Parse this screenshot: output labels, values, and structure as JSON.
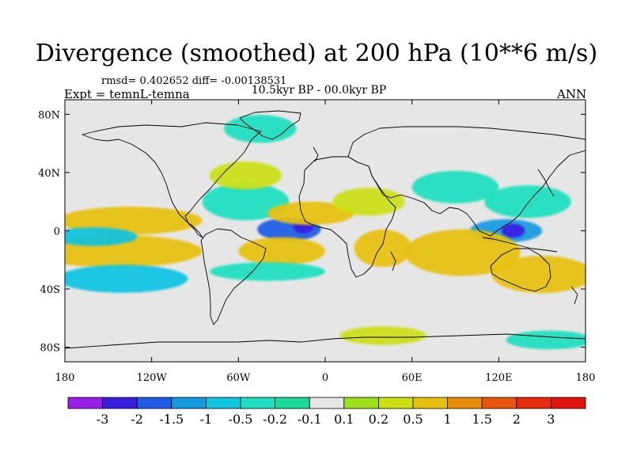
{
  "header": {
    "title": "Divergence (smoothed) at 200 hPa (10**6 m/s)",
    "stats": "rmsd= 0.402652 diff= -0.00138531",
    "expt": "Expt = temnL-temna",
    "period": "10.5kyr BP - 00.0kyr BP",
    "season": "ANN"
  },
  "map": {
    "lon_labels": [
      "180",
      "120W",
      "60W",
      "0",
      "60E",
      "120E",
      "180"
    ],
    "lon_values": [
      -180,
      -120,
      -60,
      0,
      60,
      120,
      180
    ],
    "lat_labels": [
      "80N",
      "40N",
      "0",
      "40S",
      "80S"
    ],
    "lat_values": [
      80,
      40,
      0,
      -40,
      -80
    ],
    "lat_range": [
      -90,
      90
    ],
    "lon_range": [
      -180,
      180
    ],
    "background_color": "#e6e6e6"
  },
  "colorbar": {
    "labels": [
      "-3",
      "-2",
      "-1.5",
      "-1",
      "-0.5",
      "-0.2",
      "-0.1",
      "0.1",
      "0.2",
      "0.5",
      "1",
      "1.5",
      "2",
      "3"
    ],
    "colors": [
      "#9a1ee8",
      "#3a1ee0",
      "#1f5ce6",
      "#159ae0",
      "#10c4e2",
      "#1ee0c0",
      "#1ed99a",
      "#e6e6e6",
      "#9be01a",
      "#cde014",
      "#e8c10e",
      "#e88c0c",
      "#e8560c",
      "#e82a0c",
      "#e0140c"
    ]
  },
  "chart_data": {
    "type": "heatmap",
    "title": "Divergence (smoothed) at 200 hPa (10**6 m/s)",
    "xlabel": "",
    "ylabel": "",
    "x_ticks": [
      "180",
      "120W",
      "60W",
      "0",
      "60E",
      "120E",
      "180"
    ],
    "y_ticks": [
      "80N",
      "40N",
      "0",
      "40S",
      "80S"
    ],
    "levels": [
      -3,
      -2,
      -1.5,
      -1,
      -0.5,
      -0.2,
      -0.1,
      0.1,
      0.2,
      0.5,
      1,
      1.5,
      2,
      3
    ],
    "features": [
      {
        "lon": -135,
        "lat": 7,
        "w": 50,
        "h": 6,
        "value": 0.7
      },
      {
        "lon": -145,
        "lat": -14,
        "w": 60,
        "h": 7,
        "value": 0.6
      },
      {
        "lon": -160,
        "lat": -4,
        "w": 30,
        "h": 4,
        "value": -0.7
      },
      {
        "lon": -140,
        "lat": -33,
        "w": 45,
        "h": 6,
        "value": -0.6
      },
      {
        "lon": -25,
        "lat": 1,
        "w": 22,
        "h": 5,
        "value": -1.6
      },
      {
        "lon": -15,
        "lat": 3,
        "w": 7,
        "h": 3,
        "value": -3
      },
      {
        "lon": -55,
        "lat": 20,
        "w": 30,
        "h": 8,
        "value": -0.4
      },
      {
        "lon": -55,
        "lat": 38,
        "w": 25,
        "h": 6,
        "value": 0.4
      },
      {
        "lon": -10,
        "lat": 12,
        "w": 30,
        "h": 5,
        "value": 0.7
      },
      {
        "lon": -30,
        "lat": -14,
        "w": 30,
        "h": 6,
        "value": 0.7
      },
      {
        "lon": -40,
        "lat": -28,
        "w": 40,
        "h": 4,
        "value": -0.3
      },
      {
        "lon": 40,
        "lat": -12,
        "w": 20,
        "h": 8,
        "value": 0.6
      },
      {
        "lon": 30,
        "lat": 20,
        "w": 25,
        "h": 6,
        "value": 0.3
      },
      {
        "lon": 90,
        "lat": 30,
        "w": 30,
        "h": 7,
        "value": -0.5
      },
      {
        "lon": 125,
        "lat": 0,
        "w": 25,
        "h": 5,
        "value": -1.3
      },
      {
        "lon": 130,
        "lat": 0,
        "w": 8,
        "h": 3,
        "value": -2.2
      },
      {
        "lon": 95,
        "lat": -15,
        "w": 40,
        "h": 10,
        "value": 0.8
      },
      {
        "lon": 150,
        "lat": -30,
        "w": 35,
        "h": 8,
        "value": 0.6
      },
      {
        "lon": 140,
        "lat": 20,
        "w": 30,
        "h": 7,
        "value": -0.4
      },
      {
        "lon": 155,
        "lat": -75,
        "w": 30,
        "h": 4,
        "value": -0.4
      },
      {
        "lon": -45,
        "lat": 70,
        "w": 25,
        "h": 6,
        "value": -0.3
      },
      {
        "lon": 40,
        "lat": -72,
        "w": 30,
        "h": 4,
        "value": 0.3
      }
    ]
  }
}
